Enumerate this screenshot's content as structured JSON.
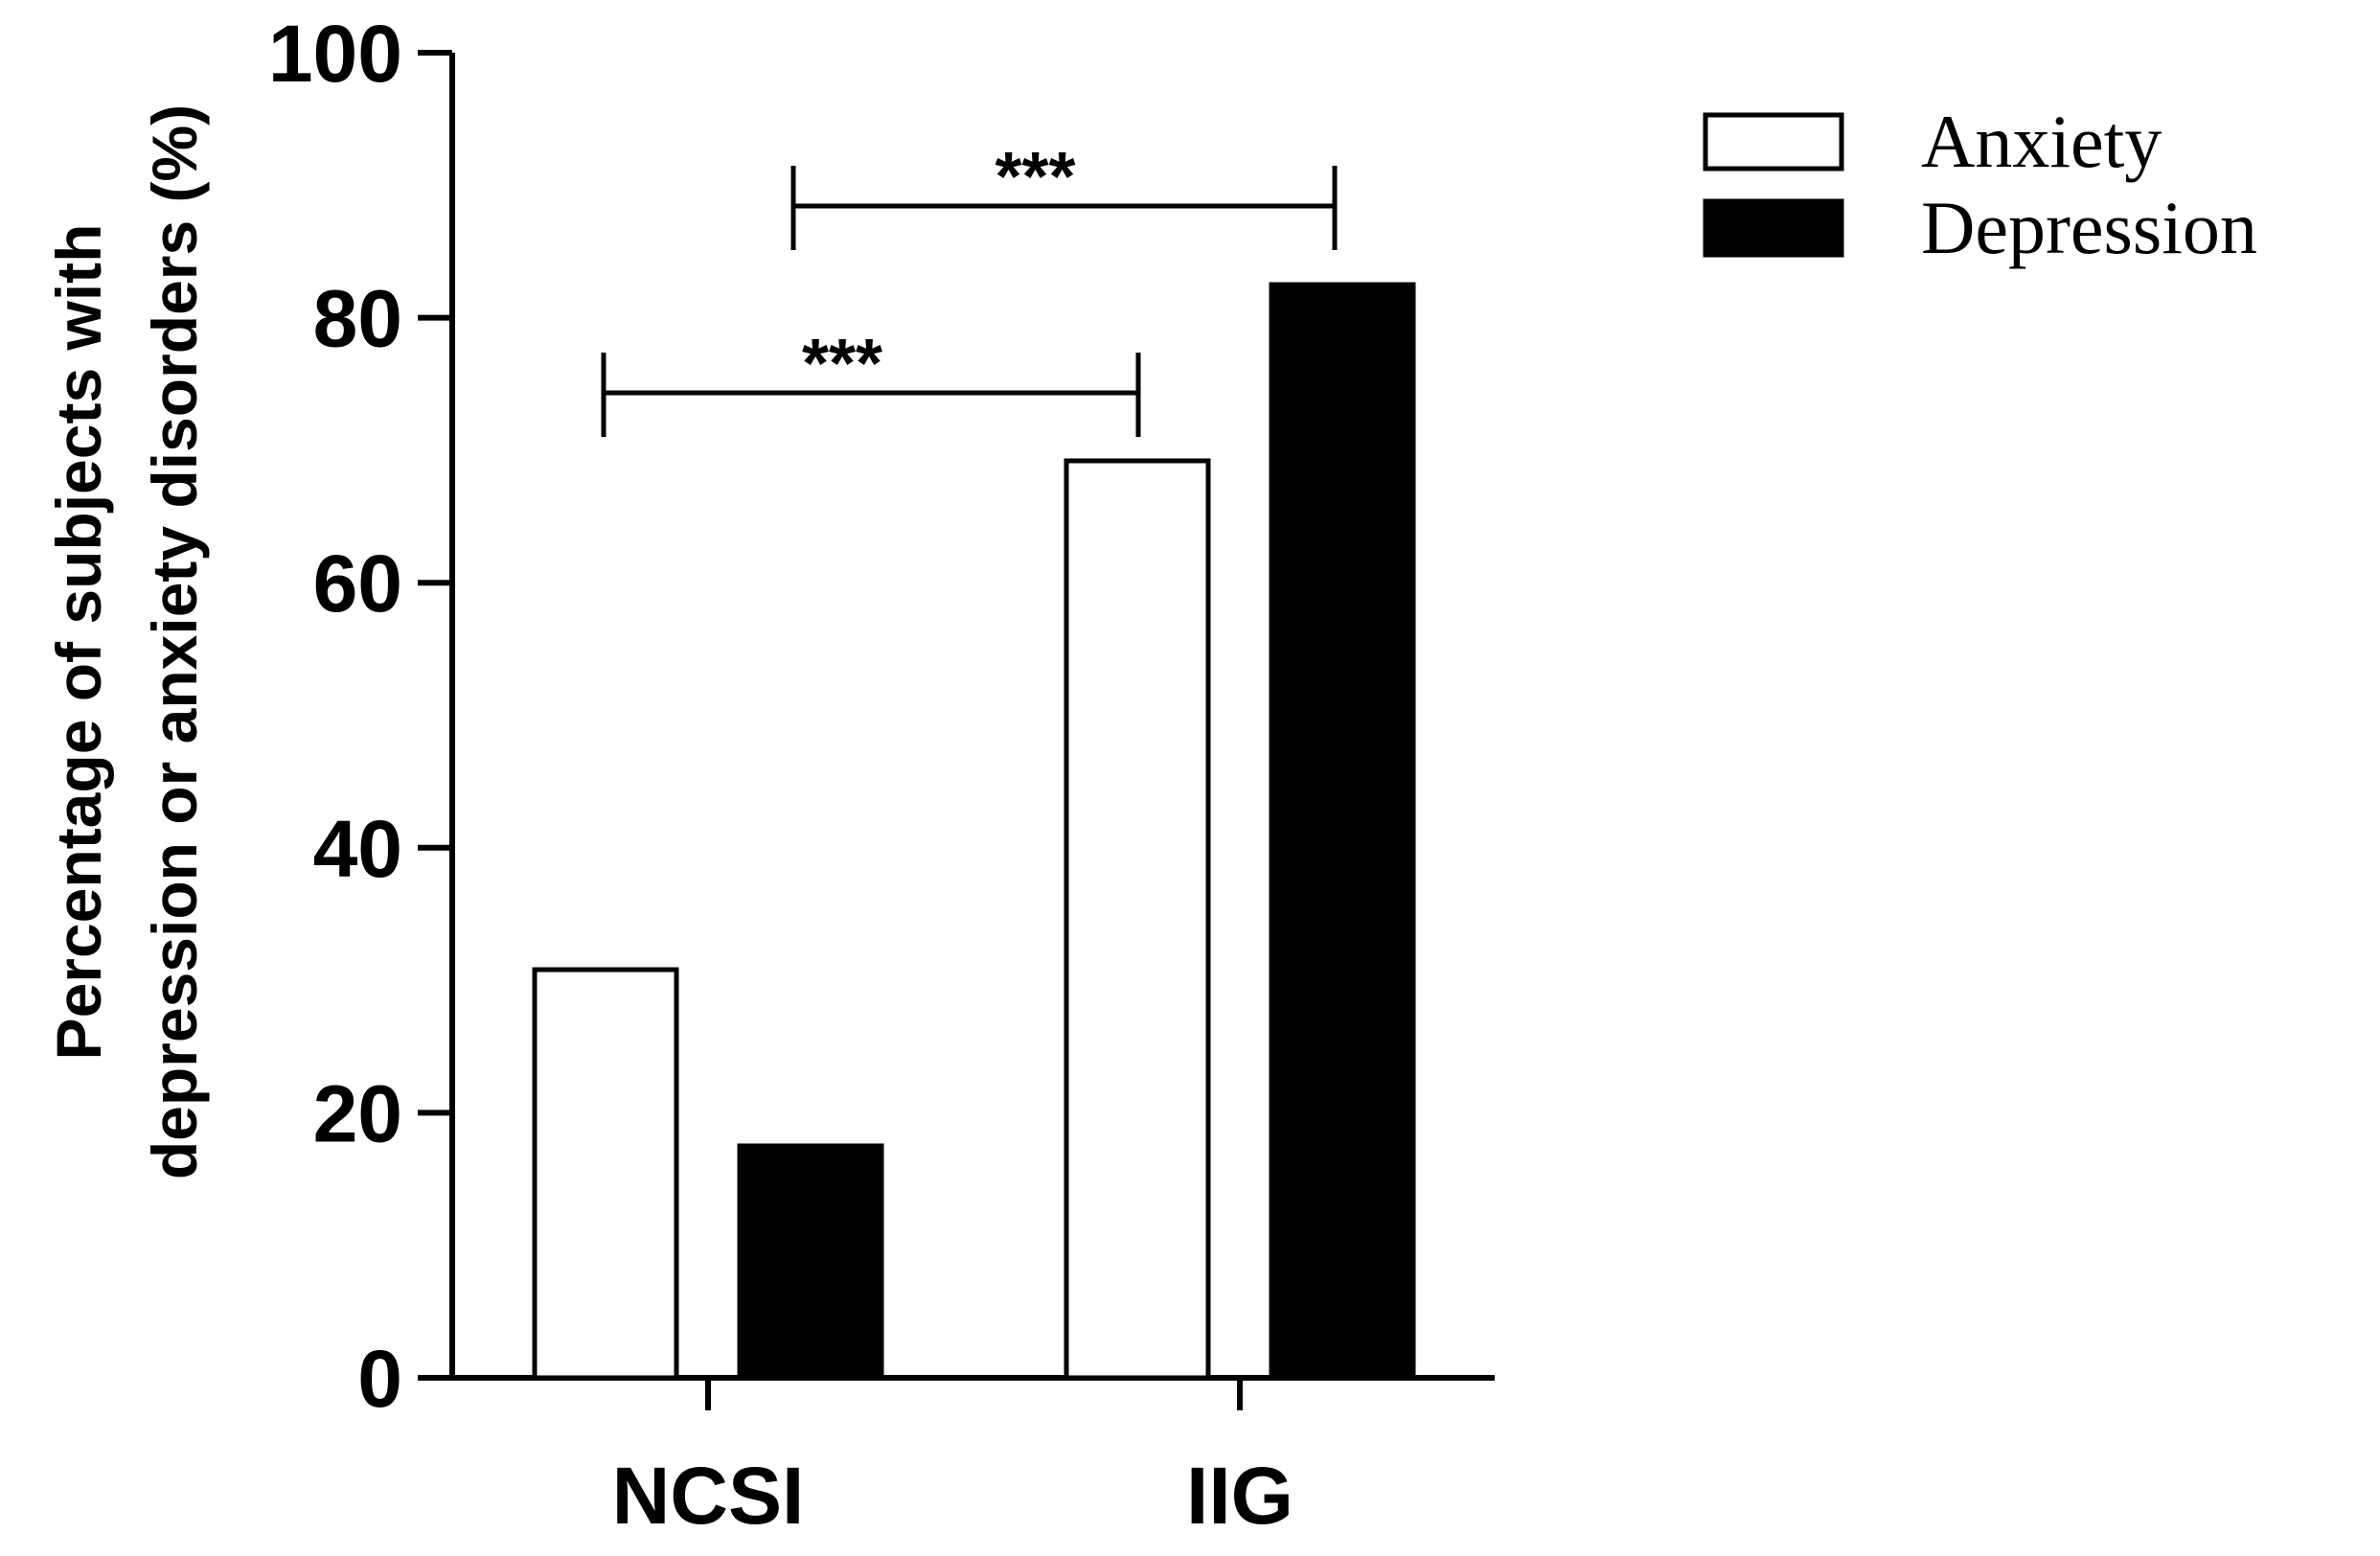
{
  "chart_data": {
    "type": "bar",
    "categories": [
      "NCSI",
      "IIG"
    ],
    "series": [
      {
        "name": "Anxiety",
        "values": [
          30.8,
          69.2
        ],
        "fill": "#ffffff"
      },
      {
        "name": "Depression",
        "values": [
          17.5,
          82.5
        ],
        "fill": "#000000"
      }
    ],
    "ylabel_line1": "Percentage of subjects with",
    "ylabel_line2": "depression or anxiety disorders (%)",
    "ylim": [
      0,
      100
    ],
    "yticks": [
      "0",
      "20",
      "40",
      "60",
      "80",
      "100"
    ],
    "legend_position": "top-right",
    "grid": false,
    "significance": [
      {
        "label": "***",
        "from": "NCSI Anxiety",
        "to": "IIG Anxiety"
      },
      {
        "label": "***",
        "from": "NCSI Depression",
        "to": "IIG Depression"
      }
    ]
  }
}
